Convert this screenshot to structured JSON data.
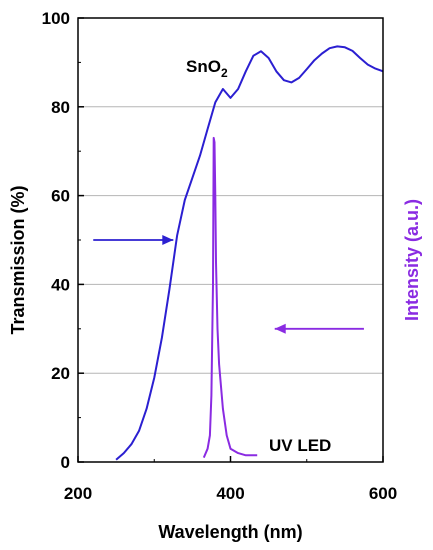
{
  "chart_data": {
    "type": "line",
    "xlabel": "Wavelength (nm)",
    "ylabel": "Transmission (%)",
    "y2label": "Intensity (a.u.)",
    "xlim": [
      200,
      600
    ],
    "ylim": [
      0,
      100
    ],
    "xticks": [
      200,
      400,
      600
    ],
    "yticks": [
      0,
      20,
      40,
      60,
      80,
      100
    ],
    "grid": "horizontal",
    "colors": {
      "transmission": "#2b1fd1",
      "intensity": "#8a2be2"
    },
    "annotations": {
      "sno2_main": "SnO",
      "sno2_sub": "2",
      "uv_led": "UV LED"
    },
    "series": [
      {
        "name": "SnO2",
        "axis": "left",
        "x": [
          250,
          260,
          270,
          280,
          290,
          300,
          310,
          320,
          330,
          340,
          350,
          360,
          370,
          380,
          390,
          400,
          410,
          420,
          430,
          440,
          450,
          460,
          470,
          480,
          490,
          500,
          510,
          520,
          530,
          540,
          550,
          560,
          570,
          580,
          590,
          600
        ],
        "values": [
          0.5,
          2,
          4,
          7,
          12,
          19,
          28,
          39,
          51,
          59,
          64,
          69,
          75,
          81,
          84,
          82,
          84,
          88,
          91.5,
          92.5,
          91,
          88,
          86,
          85.5,
          86.5,
          88.5,
          90.5,
          92,
          93.2,
          93.6,
          93.4,
          92.6,
          91,
          89.5,
          88.6,
          88
        ]
      },
      {
        "name": "UV LED",
        "axis": "right",
        "x": [
          365,
          370,
          373,
          375,
          377,
          378,
          379,
          380,
          381,
          383,
          385,
          390,
          395,
          400,
          410,
          420,
          435
        ],
        "values": [
          1,
          3,
          6,
          15,
          40,
          73,
          72,
          60,
          45,
          30,
          22,
          12,
          6,
          3,
          2,
          1.5,
          1.5
        ]
      }
    ]
  }
}
